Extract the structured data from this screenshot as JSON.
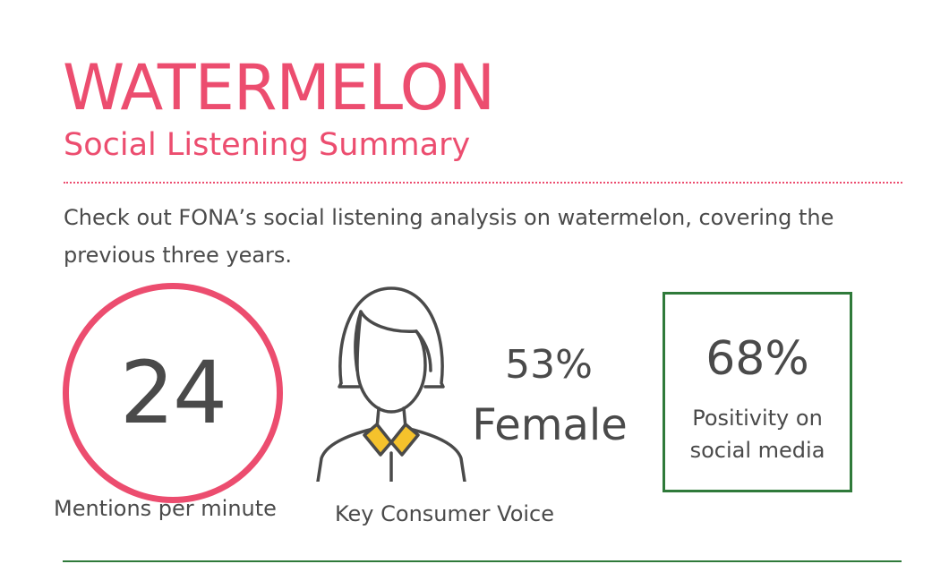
{
  "header": {
    "title": "WATERMELON",
    "subtitle": "Social Listening Summary"
  },
  "intro": {
    "text": "Check out FONA’s social listening analysis on watermelon, covering the previous three years."
  },
  "stats": {
    "mentions": {
      "value": "24",
      "label": "Mentions per minute"
    },
    "consumer": {
      "icon": "woman-icon",
      "label": "Key Consumer Voice",
      "percent": "53%",
      "gender": "Female"
    },
    "positivity": {
      "value": "68%",
      "label": "Positivity on social media"
    }
  },
  "colors": {
    "accent_pink": "#ec4d6f",
    "accent_green": "#2f7a3a",
    "text_gray": "#4a4a4a",
    "collar_yellow": "#f5c22c"
  }
}
